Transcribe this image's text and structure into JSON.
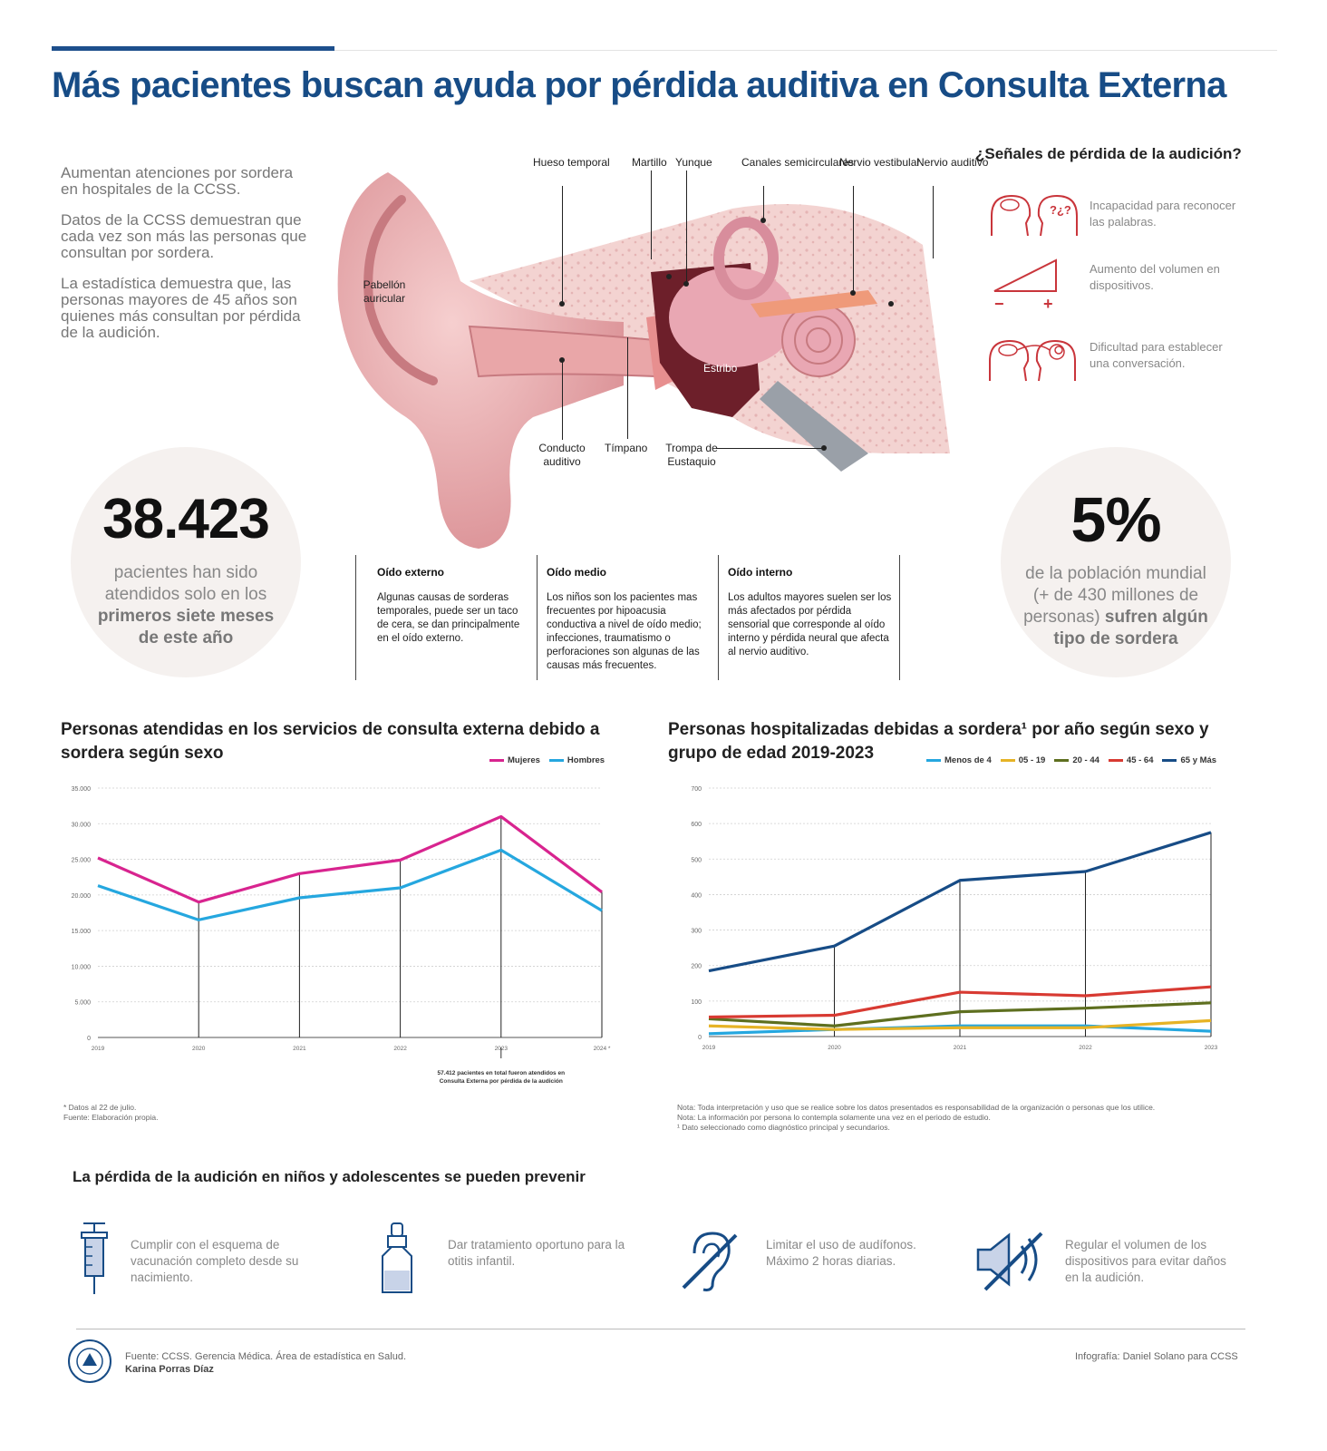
{
  "title": "Más pacientes buscan ayuda por pérdida auditiva en Consulta Externa",
  "intro": [
    "Aumentan atenciones por sordera en hospitales de la CCSS.",
    "Datos de la CCSS demuestran que cada vez son más las personas que consultan por sordera.",
    "La estadística demuestra que, las personas mayores de 45 años son quienes más consultan por pérdida de la audición."
  ],
  "stat_left": {
    "number": "38.423",
    "text1": "pacientes han sido atendidos solo en los",
    "text2": "primeros siete meses de este año"
  },
  "stat_right": {
    "number": "5%",
    "text1": "de la población mundial (+ de 430 millones de personas)",
    "text2": "sufren algún tipo de sordera"
  },
  "ear_labels": {
    "hueso": "Hueso temporal",
    "martillo": "Martillo",
    "yunque": "Yunque",
    "canales": "Canales semicirculares",
    "nervio_vestibular": "Nervio vestibular",
    "nervio_auditivo": "Nervio auditivo",
    "pabellon": "Pabellón auricular",
    "estribo": "Estribo",
    "conducto": "Conducto auditivo",
    "timpano": "Tímpano",
    "trompa": "Trompa de Eustaquio"
  },
  "ear_sections": [
    {
      "title": "Oído externo",
      "body": "Algunas causas de sorderas temporales, puede ser un taco de cera, se dan principalmente en el oído externo."
    },
    {
      "title": "Oído medio",
      "body": "Los niños son los pacientes mas frecuentes por hipoacusia conductiva a nivel de oído medio; infecciones, traumatismo o perforaciones son algunas de las causas más frecuentes."
    },
    {
      "title": "Oído interno",
      "body": "Los adultos mayores suelen ser los más afectados por pérdida sensorial que corresponde al oído interno y pérdida neural que afecta al nervio auditivo."
    }
  ],
  "signals": {
    "title": "¿Señales de pérdida de la audición?",
    "items": [
      {
        "icon": "heads-question-icon",
        "text": "Incapacidad para reconocer las palabras."
      },
      {
        "icon": "volume-triangle-icon",
        "text": "Aumento del volumen en dispositivos."
      },
      {
        "icon": "heads-tangled-icon",
        "text": "Dificultad para establecer una conversación."
      }
    ]
  },
  "chart_data": [
    {
      "type": "line",
      "title": "Personas atendidas en los servicios de consulta externa debido a sordera según sexo",
      "categories": [
        "2019",
        "2020",
        "2021",
        "2022",
        "2023",
        "2024 *"
      ],
      "series": [
        {
          "name": "Mujeres",
          "color": "#d8248f",
          "values": [
            25200,
            19000,
            23000,
            24900,
            31000,
            20400
          ]
        },
        {
          "name": "Hombres",
          "color": "#25a7df",
          "values": [
            21300,
            16500,
            19600,
            21000,
            26300,
            17800
          ]
        }
      ],
      "ylim": [
        0,
        35000
      ],
      "yticks": [
        "0",
        "5.000",
        "10.000",
        "15.000",
        "20.000",
        "25.000",
        "30.000",
        "35.000"
      ],
      "annotation": "57.412 pacientes en total fueron atendidos en Consulta Externa por pérdida de la audición",
      "notes": [
        "* Datos al 22 de julio.",
        "Fuente: Elaboración propia."
      ]
    },
    {
      "type": "line",
      "title": "Personas hospitalizadas debidas a sordera¹ por año según sexo y grupo de edad 2019-2023",
      "categories": [
        "2019",
        "2020",
        "2021",
        "2022",
        "2023"
      ],
      "series": [
        {
          "name": "Menos de 4",
          "color": "#25a7df",
          "values": [
            8,
            20,
            30,
            30,
            15
          ]
        },
        {
          "name": "05 - 19",
          "color": "#e6b325",
          "values": [
            30,
            20,
            25,
            25,
            45
          ]
        },
        {
          "name": "20 - 44",
          "color": "#5e6f1f",
          "values": [
            50,
            30,
            70,
            80,
            95
          ]
        },
        {
          "name": "45 - 64",
          "color": "#d83a32",
          "values": [
            55,
            60,
            125,
            115,
            140
          ]
        },
        {
          "name": "65 y Más",
          "color": "#174c86",
          "values": [
            185,
            255,
            440,
            465,
            575
          ]
        }
      ],
      "ylim": [
        0,
        700
      ],
      "yticks": [
        "0",
        "100",
        "200",
        "300",
        "400",
        "500",
        "600",
        "700"
      ],
      "notes": [
        "Nota: Toda interpretación y uso que se realice sobre los datos presentados es responsabilidad de la organización o personas que los utilice.",
        "Nota: La información por persona lo contempla solamente una vez en el periodo de estudio.",
        "¹ Dato seleccionado como diagnóstico principal y secundarios."
      ]
    }
  ],
  "prevention": {
    "title": "La pérdida de la audición en niños y adolescentes se pueden prevenir",
    "items": [
      {
        "icon": "syringe-icon",
        "text": "Cumplir con el esquema de vacunación completo desde su nacimiento."
      },
      {
        "icon": "dropper-bottle-icon",
        "text": "Dar tratamiento oportuno para la otitis infantil."
      },
      {
        "icon": "ear-slash-icon",
        "text": "Limitar el uso de audífonos. Máximo 2 horas diarias."
      },
      {
        "icon": "speaker-slash-icon",
        "text": "Regular el volumen de los dispositivos para evitar daños en la audición."
      }
    ]
  },
  "footer": {
    "logo_text": "SEGURO SOCIAL COSTA RICA",
    "source": "Fuente: CCSS. Gerencia Médica. Área de estadística en Salud.",
    "author": "Karina Porras Díaz",
    "credit": "Infografía: Daniel Solano para CCSS"
  },
  "colors": {
    "title_blue": "#174c86",
    "ear_pink": "#e7a0a3",
    "signal_red": "#c9353b"
  }
}
